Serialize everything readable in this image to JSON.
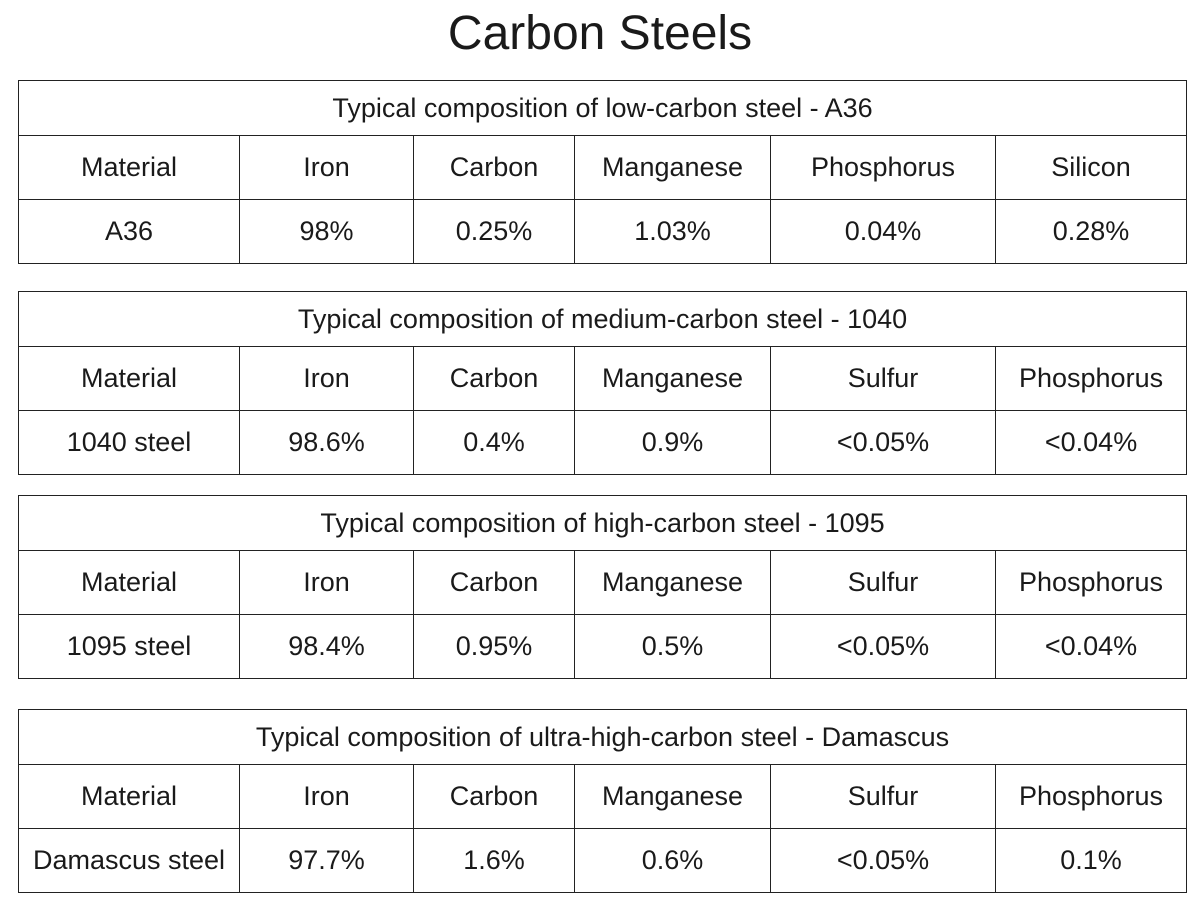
{
  "title": "Carbon Steels",
  "tables": [
    {
      "caption": "Typical composition of low-carbon steel - A36",
      "header": [
        "Material",
        "Iron",
        "Carbon",
        "Manganese",
        "Phosphorus",
        "Silicon"
      ],
      "row": [
        "A36",
        "98%",
        "0.25%",
        "1.03%",
        "0.04%",
        "0.28%"
      ]
    },
    {
      "caption": "Typical composition of medium-carbon steel - 1040",
      "header": [
        "Material",
        "Iron",
        "Carbon",
        "Manganese",
        "Sulfur",
        "Phosphorus"
      ],
      "row": [
        "1040 steel",
        "98.6%",
        "0.4%",
        "0.9%",
        "<0.05%",
        "<0.04%"
      ]
    },
    {
      "caption": "Typical composition of high-carbon steel - 1095",
      "header": [
        "Material",
        "Iron",
        "Carbon",
        "Manganese",
        "Sulfur",
        "Phosphorus"
      ],
      "row": [
        "1095 steel",
        "98.4%",
        "0.95%",
        "0.5%",
        "<0.05%",
        "<0.04%"
      ]
    },
    {
      "caption": "Typical composition of ultra-high-carbon steel - Damascus",
      "header": [
        "Material",
        "Iron",
        "Carbon",
        "Manganese",
        "Sulfur",
        "Phosphorus"
      ],
      "row": [
        "Damascus steel",
        "97.7%",
        "1.6%",
        "0.6%",
        "<0.05%",
        "0.1%"
      ]
    }
  ]
}
